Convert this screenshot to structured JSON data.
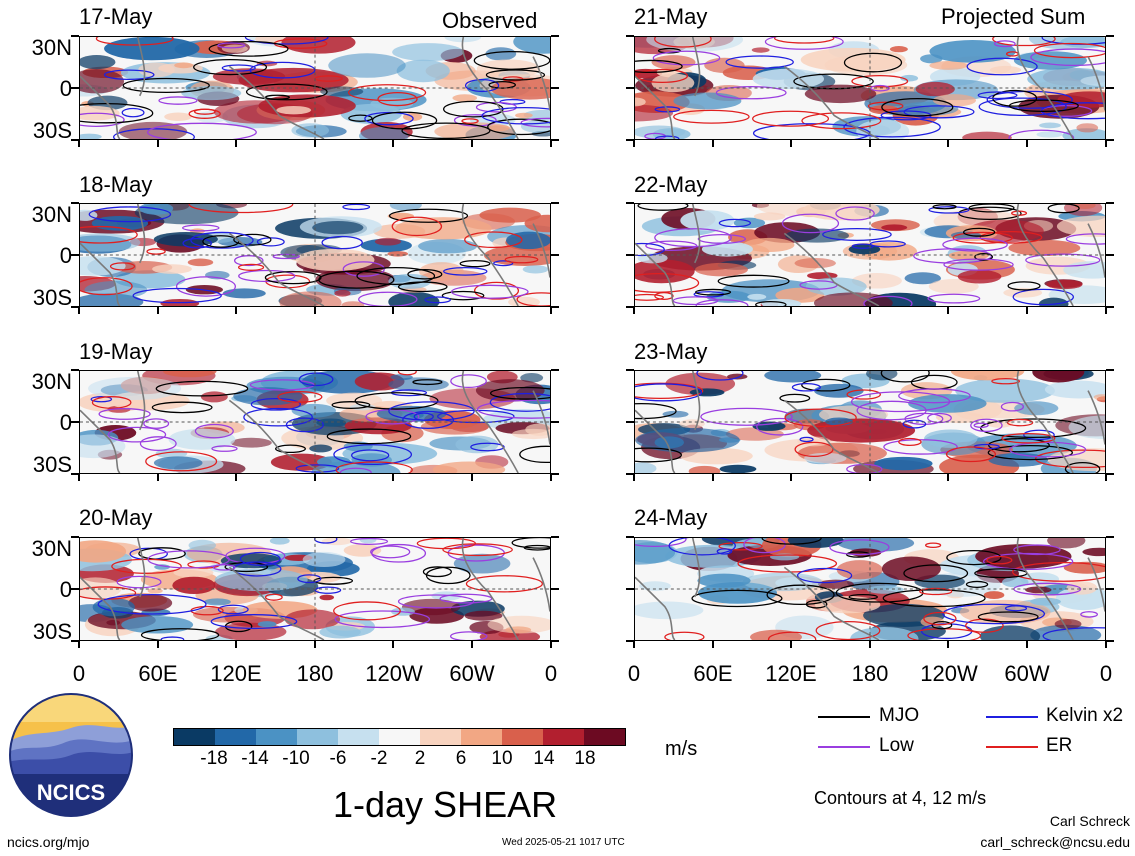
{
  "columns": [
    {
      "header": "Observed",
      "dates": [
        "17-May",
        "18-May",
        "19-May",
        "20-May"
      ]
    },
    {
      "header": "Projected Sum",
      "dates": [
        "21-May",
        "22-May",
        "23-May",
        "24-May"
      ]
    }
  ],
  "lat_labels": [
    "30N",
    "0",
    "30S"
  ],
  "lon_labels": [
    "0",
    "60E",
    "120E",
    "180",
    "120W",
    "60W",
    "0"
  ],
  "colorbar": {
    "colors": [
      "#0a3a64",
      "#2268a8",
      "#4b92c4",
      "#8ec0de",
      "#c6e0ef",
      "#f7f7f7",
      "#f8d3bf",
      "#f2a784",
      "#d9604c",
      "#b21f2f",
      "#6c0a22"
    ],
    "ticks": [
      "-18",
      "-14",
      "-10",
      "-6",
      "-2",
      "2",
      "6",
      "10",
      "14",
      "18"
    ],
    "units": "m/s"
  },
  "legend": [
    {
      "label": "MJO",
      "color": "#000000"
    },
    {
      "label": "Kelvin x2",
      "color": "#1f1fe0"
    },
    {
      "label": "Low",
      "color": "#9a3ee0"
    },
    {
      "label": "ER",
      "color": "#e01f1f"
    }
  ],
  "title": "1-day SHEAR",
  "contour_note": "Contours at 4, 12 m/s",
  "logo_text": "NCICS",
  "footer": {
    "left": "ncics.org/mjo",
    "center": "Wed 2025-05-21 1017 UTC",
    "author": "Carl Schreck",
    "email": "carl_schreck@ncsu.edu"
  }
}
